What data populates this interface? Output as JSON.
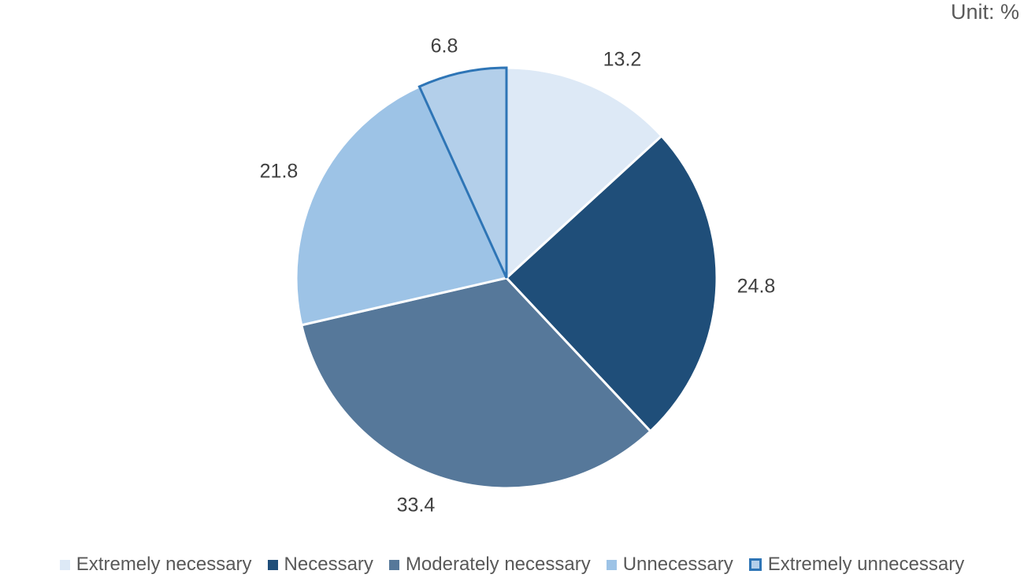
{
  "unit_label": "Unit: %",
  "chart_data": {
    "type": "pie",
    "title": "",
    "unit": "Unit: %",
    "categories": [
      "Extremely necessary",
      "Necessary",
      "Moderately necessary",
      "Unnecessary",
      "Extremely unnecessary"
    ],
    "values": [
      13.2,
      24.8,
      33.4,
      21.8,
      6.8
    ],
    "labels": [
      "13.2",
      "24.8",
      "33.4",
      "21.8",
      "6.8"
    ],
    "colors": [
      "#dde9f6",
      "#1f4e79",
      "#56789a",
      "#9dc3e6",
      "#b3cfea"
    ],
    "outline_colors": [
      "#ffffff",
      "#ffffff",
      "#ffffff",
      "#ffffff",
      "#2e75b6"
    ],
    "start_angle_deg": 0,
    "direction": "clockwise",
    "legend_position": "bottom"
  }
}
